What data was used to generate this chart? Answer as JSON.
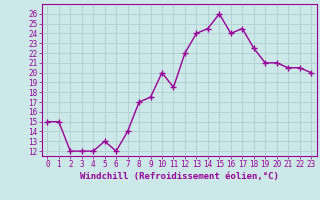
{
  "x": [
    0,
    1,
    2,
    3,
    4,
    5,
    6,
    7,
    8,
    9,
    10,
    11,
    12,
    13,
    14,
    15,
    16,
    17,
    18,
    19,
    20,
    21,
    22,
    23
  ],
  "y": [
    15,
    15,
    12,
    12,
    12,
    13,
    12,
    14,
    17,
    17.5,
    20,
    18.5,
    22,
    24,
    24.5,
    26,
    24,
    24.5,
    22.5,
    21,
    21,
    20.5,
    20.5,
    20
  ],
  "line_color": "#990099",
  "marker": "+",
  "marker_size": 4,
  "bg_color": "#cce8e8",
  "grid_color": "#aacccc",
  "xlabel": "Windchill (Refroidissement éolien,°C)",
  "xlabel_color": "#990099",
  "xlabel_fontsize": 6.5,
  "ylim": [
    11.5,
    27
  ],
  "xlim": [
    -0.5,
    23.5
  ],
  "yticks": [
    12,
    13,
    14,
    15,
    16,
    17,
    18,
    19,
    20,
    21,
    22,
    23,
    24,
    25,
    26
  ],
  "xtick_labels": [
    "0",
    "1",
    "2",
    "3",
    "4",
    "5",
    "6",
    "7",
    "8",
    "9",
    "10",
    "11",
    "12",
    "13",
    "14",
    "15",
    "16",
    "17",
    "18",
    "19",
    "20",
    "21",
    "22",
    "23"
  ],
  "tick_fontsize": 5.5,
  "tick_color": "#990099",
  "line_width": 1.0,
  "spine_color": "#990099"
}
